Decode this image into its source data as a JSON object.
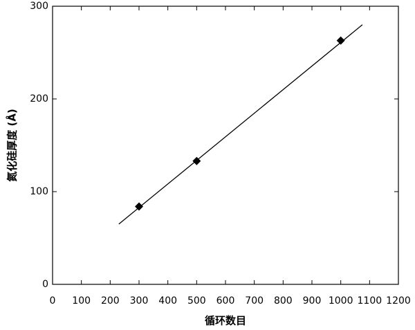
{
  "chart_data": {
    "type": "scatter",
    "x_label": "循环数目",
    "y_label": "氮化硅厚度 (Å)",
    "x": [
      300,
      500,
      1000
    ],
    "values": [
      84,
      133,
      263
    ],
    "color": "#000000",
    "marker": "diamond",
    "fit": {
      "x": [
        230,
        1075
      ],
      "values": [
        65,
        280
      ],
      "color": "#000000"
    },
    "xlim": [
      0,
      1200
    ],
    "xticks": [
      0,
      100,
      200,
      300,
      400,
      500,
      600,
      700,
      800,
      900,
      1000,
      1100,
      1200
    ],
    "ylim": [
      0,
      300
    ],
    "yticks": [
      0,
      100,
      200,
      300
    ],
    "grid": false
  }
}
